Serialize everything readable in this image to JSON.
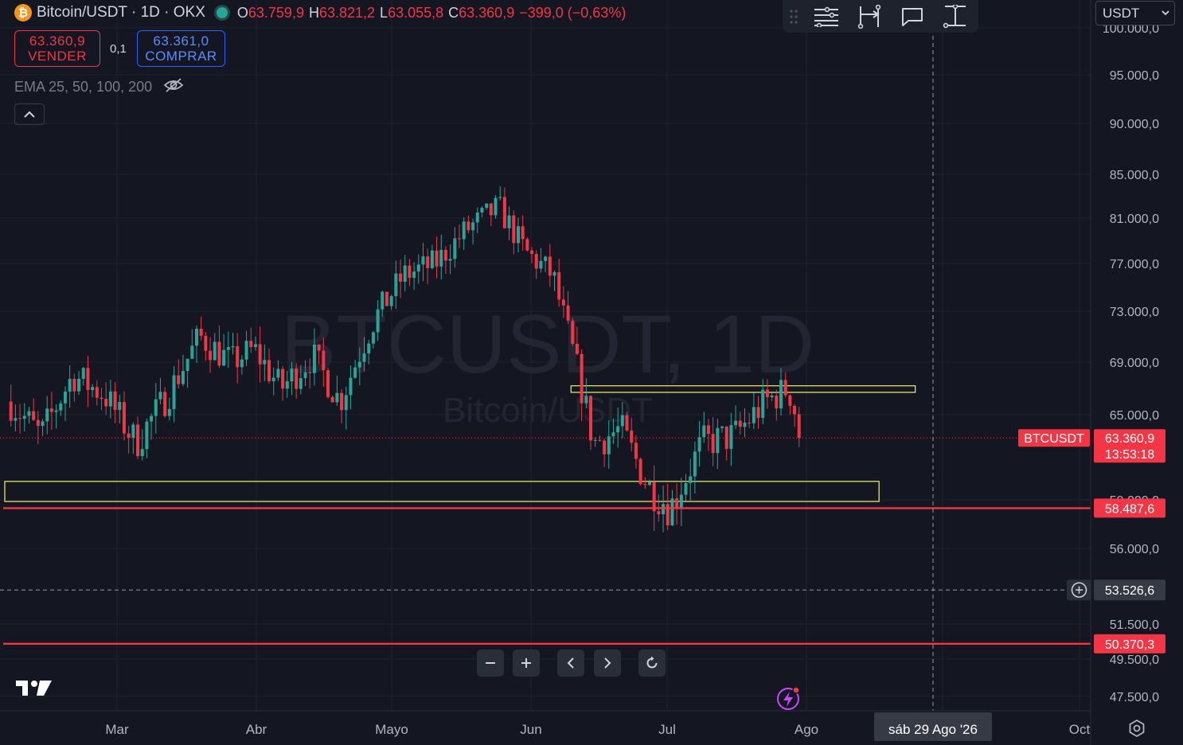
{
  "header": {
    "coin_glyph": "₿",
    "symbol_title": "Bitcoin/USDT · 1D · OKX",
    "o_label": "O",
    "o_value": "63.759,9",
    "h_label": "H",
    "h_value": "63.821,2",
    "l_label": "L",
    "l_value": "63.055,8",
    "c_label": "C",
    "c_value": "63.360,9",
    "change": "−399,0 (−0,63%)"
  },
  "trade": {
    "sell_price": "63.360,9",
    "sell_label": "VENDER",
    "quantity": "0,1",
    "buy_price": "63.361,0",
    "buy_label": "COMPRAR"
  },
  "indicator": {
    "label": "EMA 25, 50, 100, 200",
    "visibility_icon": "eye-off-icon"
  },
  "toolbar": {
    "tools": [
      "drag-handle-icon",
      "lines-icon",
      "long-position-icon",
      "comment-icon",
      "anchor-icon"
    ]
  },
  "currency_select": {
    "value": "USDT"
  },
  "watermark": {
    "line1": "BTCUSDT, 1D",
    "line2": "Bitcoin/USDT"
  },
  "price_axis": {
    "ticks": [
      "100.000,0",
      "95.000,0",
      "90.000,0",
      "85.000,0",
      "81.000,0",
      "77.000,0",
      "73.000,0",
      "69.000,0",
      "65.000,0",
      "59.000,0",
      "56.000,0",
      "51.500,0",
      "49.500,0",
      "47.500,0"
    ],
    "current_symbol": "BTCUSDT",
    "current_price": "63.360,9",
    "countdown": "13:53:18",
    "crosshair_price": "53.526,6",
    "level_upper": "58.487,6",
    "level_lower": "50.370,3"
  },
  "time_axis": {
    "labels": [
      "Mar",
      "Abr",
      "Mayo",
      "Jun",
      "Jul",
      "Ago",
      "Oct"
    ],
    "crosshair_date": "sáb 29 Ago '26"
  },
  "colors": {
    "up": "#26a69a",
    "down": "#f23645",
    "zone": "#f5f26a",
    "background": "#141722"
  },
  "chart_data": {
    "type": "candlestick",
    "timeframe": "1D",
    "y_unit": "USDT",
    "x_range": [
      "2024-02-02",
      "2024-10-02"
    ],
    "y_range_approx": [
      46500,
      100500
    ],
    "candles_close_approx": [
      [
        "2024-02-02",
        66000
      ],
      [
        "2024-02-09",
        63500
      ],
      [
        "2024-02-16",
        68000
      ],
      [
        "2024-02-23",
        66500
      ],
      [
        "2024-03-01",
        63000
      ],
      [
        "2024-03-08",
        66500
      ],
      [
        "2024-03-15",
        71000
      ],
      [
        "2024-03-22",
        69000
      ],
      [
        "2024-03-27",
        70000
      ],
      [
        "2024-04-02",
        67000
      ],
      [
        "2024-04-09",
        69500
      ],
      [
        "2024-04-15",
        66000
      ],
      [
        "2024-04-22",
        72000
      ],
      [
        "2024-04-29",
        76000
      ],
      [
        "2024-05-06",
        77000
      ],
      [
        "2024-05-13",
        80000
      ],
      [
        "2024-05-20",
        82000
      ],
      [
        "2024-05-26",
        78000
      ],
      [
        "2024-06-01",
        76000
      ],
      [
        "2024-06-03",
        73000
      ],
      [
        "2024-06-06",
        69000
      ],
      [
        "2024-06-10",
        63000
      ],
      [
        "2024-06-16",
        64000
      ],
      [
        "2024-06-22",
        60000
      ],
      [
        "2024-06-27",
        58500
      ],
      [
        "2024-07-04",
        63000
      ],
      [
        "2024-07-11",
        63500
      ],
      [
        "2024-07-18",
        66000
      ],
      [
        "2024-07-23",
        67000
      ],
      [
        "2024-07-26",
        63360.9
      ]
    ],
    "horizontal_levels": [
      58487.6,
      50370.3
    ],
    "zones": [
      {
        "from": "2024-06-05",
        "to": "2024-08-20",
        "low": 66700,
        "high": 67200
      },
      {
        "from": "2024-02-01",
        "to": "2024-08-12",
        "low": 58900,
        "high": 60300
      }
    ],
    "crosshair": {
      "date": "2026-08-29",
      "price": 53526.6
    }
  }
}
